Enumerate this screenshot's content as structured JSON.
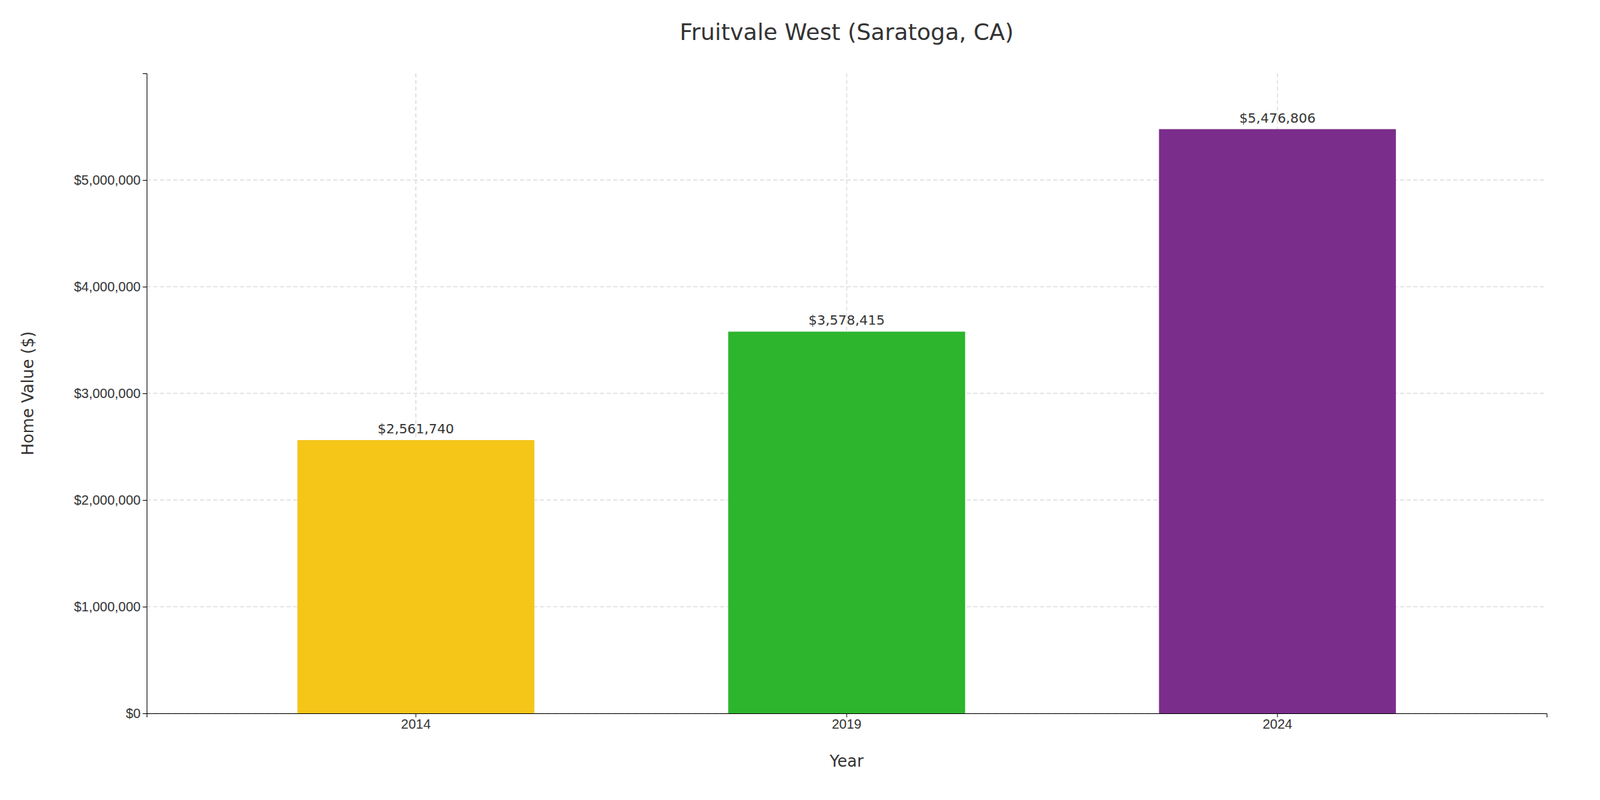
{
  "chart_data": {
    "type": "bar",
    "title": "Fruitvale West (Saratoga, CA)",
    "xlabel": "Year",
    "ylabel": "Home Value ($)",
    "categories": [
      "2014",
      "2019",
      "2024"
    ],
    "values": [
      2561740,
      3578415,
      5476806
    ],
    "value_labels": [
      "$2,561,740",
      "$3,578,415",
      "$5,476,806"
    ],
    "data_labels": true,
    "colors": [
      "#F5C518",
      "#2DB52D",
      "#7B2D8B"
    ],
    "ylim": [
      0,
      6000000
    ],
    "yticks": [
      {
        "value": 0,
        "label": "$0"
      },
      {
        "value": 1000000,
        "label": "$1,000,000"
      },
      {
        "value": 2000000,
        "label": "$2,000,000"
      },
      {
        "value": 3000000,
        "label": "$3,000,000"
      },
      {
        "value": 4000000,
        "label": "$4,000,000"
      },
      {
        "value": 5000000,
        "label": "$5,000,000"
      }
    ],
    "grid": true
  }
}
